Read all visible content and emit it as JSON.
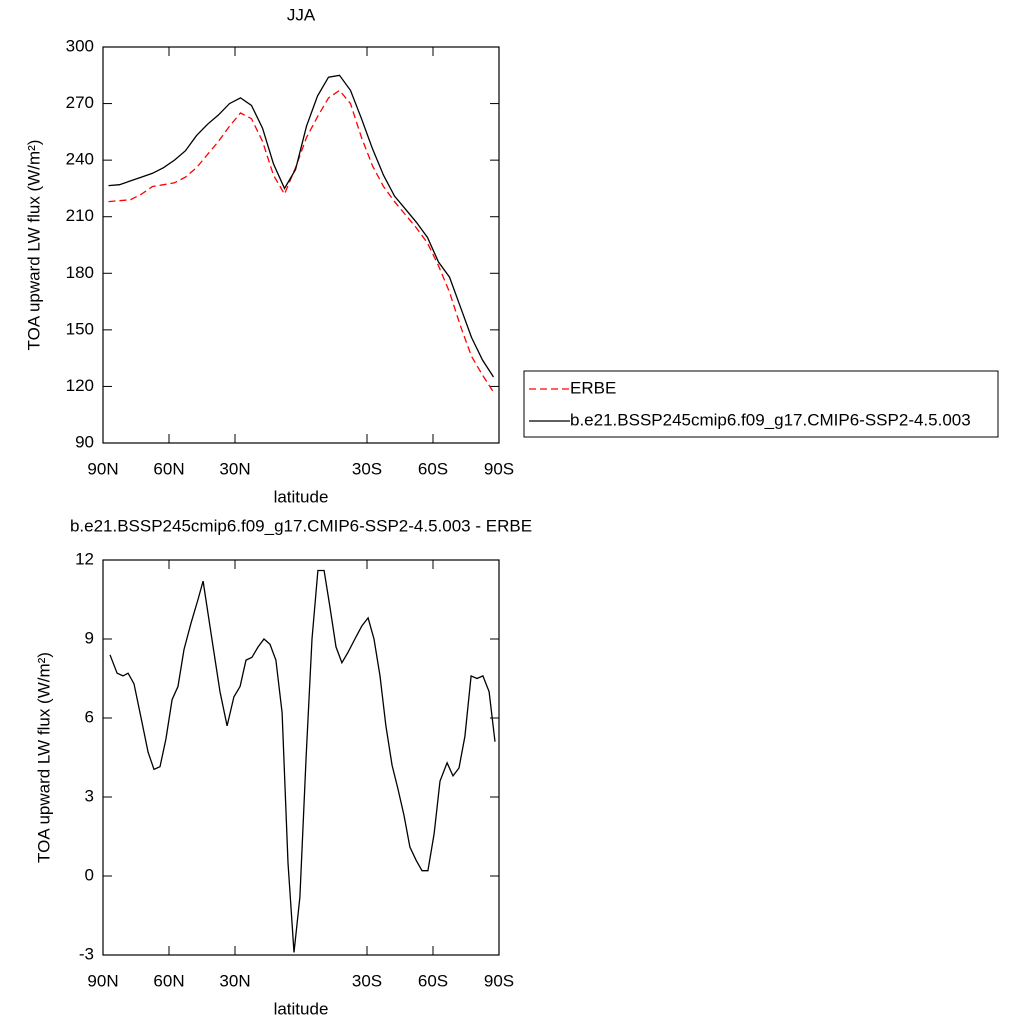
{
  "chart_data": [
    {
      "type": "line",
      "title": "JJA",
      "xlabel": "latitude",
      "ylabel": "TOA upward LW flux (W/m²)",
      "x": [
        87.5,
        82.5,
        77.5,
        72.5,
        67.5,
        62.5,
        57.5,
        52.5,
        47.5,
        42.5,
        37.5,
        32.5,
        27.5,
        22.5,
        17.5,
        12.5,
        7.5,
        2.5,
        -2.5,
        -7.5,
        -12.5,
        -17.5,
        -22.5,
        -27.5,
        -32.5,
        -37.5,
        -42.5,
        -47.5,
        -52.5,
        -57.5,
        -62.5,
        -67.5,
        -72.5,
        -77.5,
        -82.5,
        -87.5
      ],
      "series": [
        {
          "name": "ERBE",
          "color": "#ff0000",
          "linestyle": "dashed",
          "values": [
            218,
            218.5,
            219,
            222,
            226,
            227,
            228,
            231,
            236,
            243,
            250,
            258,
            265,
            262,
            250,
            232,
            222,
            236,
            252,
            263,
            273,
            277,
            270,
            252,
            237,
            226,
            218,
            211,
            204,
            196,
            184,
            170,
            152,
            136,
            126,
            117
          ]
        },
        {
          "name": "b.e21.BSSP245cmip6.f09_g17.CMIP6-SSP2-4.5.003",
          "color": "#000000",
          "linestyle": "solid",
          "values": [
            226.5,
            227,
            229,
            231,
            233,
            236,
            240,
            245,
            253,
            259,
            264,
            270,
            273,
            269,
            257,
            238,
            225,
            235,
            258,
            274,
            284,
            285,
            277,
            262,
            246,
            232,
            221,
            214,
            207,
            199,
            186,
            178,
            162,
            146,
            134,
            125
          ]
        }
      ],
      "xlim": [
        90,
        -90
      ],
      "xticks": [
        {
          "value": 90,
          "label": "90N"
        },
        {
          "value": 60,
          "label": "60N"
        },
        {
          "value": 30,
          "label": "30N"
        },
        {
          "value": -30,
          "label": "30S"
        },
        {
          "value": -60,
          "label": "60S"
        },
        {
          "value": -90,
          "label": "90S"
        }
      ],
      "ylim": [
        90,
        300
      ],
      "yticks": [
        90,
        120,
        150,
        180,
        210,
        240,
        270,
        300
      ],
      "legend": "outside-right"
    },
    {
      "type": "line",
      "title": "b.e21.BSSP245cmip6.f09_g17.CMIP6-SSP2-4.5.003 - ERBE",
      "xlabel": "latitude",
      "ylabel": "TOA upward LW flux (W/m²)",
      "x": [
        86.8,
        83.6,
        80.9,
        78.6,
        75.9,
        72.7,
        69.5,
        66.8,
        64.1,
        61.4,
        58.6,
        55.9,
        53.2,
        50.0,
        46.8,
        44.5,
        40.5,
        36.8,
        33.6,
        30.5,
        27.7,
        25.0,
        22.3,
        19.5,
        16.8,
        14.1,
        11.4,
        8.6,
        5.9,
        3.2,
        0.5,
        -2.3,
        -5.0,
        -7.7,
        -10.5,
        -13.2,
        -15.9,
        -18.6,
        -21.4,
        -24.5,
        -27.7,
        -30.5,
        -33.2,
        -35.9,
        -38.6,
        -41.4,
        -44.1,
        -46.8,
        -49.5,
        -52.3,
        -55.0,
        -57.7,
        -60.5,
        -63.2,
        -66.4,
        -69.1,
        -71.8,
        -74.5,
        -77.3,
        -80.0,
        -82.7,
        -85.5,
        -88.2
      ],
      "series": [
        {
          "color": "#000000",
          "linestyle": "solid",
          "values": [
            8.4,
            7.7,
            7.6,
            7.7,
            7.3,
            6.0,
            4.7,
            4.05,
            4.15,
            5.2,
            6.7,
            7.2,
            8.6,
            9.6,
            10.5,
            11.2,
            9.0,
            7.0,
            5.7,
            6.8,
            7.2,
            8.2,
            8.3,
            8.7,
            9.0,
            8.8,
            8.2,
            6.2,
            0.5,
            -2.9,
            -0.8,
            4.5,
            9.0,
            11.6,
            11.6,
            10.2,
            8.7,
            8.1,
            8.5,
            9.0,
            9.5,
            9.8,
            9.0,
            7.6,
            5.7,
            4.2,
            3.3,
            2.3,
            1.1,
            0.6,
            0.2,
            0.2,
            1.6,
            3.6,
            4.3,
            3.8,
            4.1,
            5.3,
            7.6,
            7.5,
            7.6,
            7.0,
            5.1
          ]
        }
      ],
      "xlim": [
        90,
        -90
      ],
      "xticks": [
        {
          "value": 90,
          "label": "90N"
        },
        {
          "value": 60,
          "label": "60N"
        },
        {
          "value": 30,
          "label": "30N"
        },
        {
          "value": -30,
          "label": "30S"
        },
        {
          "value": -60,
          "label": "60S"
        },
        {
          "value": -90,
          "label": "90S"
        }
      ],
      "ylim": [
        -3,
        12
      ],
      "yticks": [
        -3,
        0,
        3,
        6,
        9,
        12
      ]
    }
  ]
}
